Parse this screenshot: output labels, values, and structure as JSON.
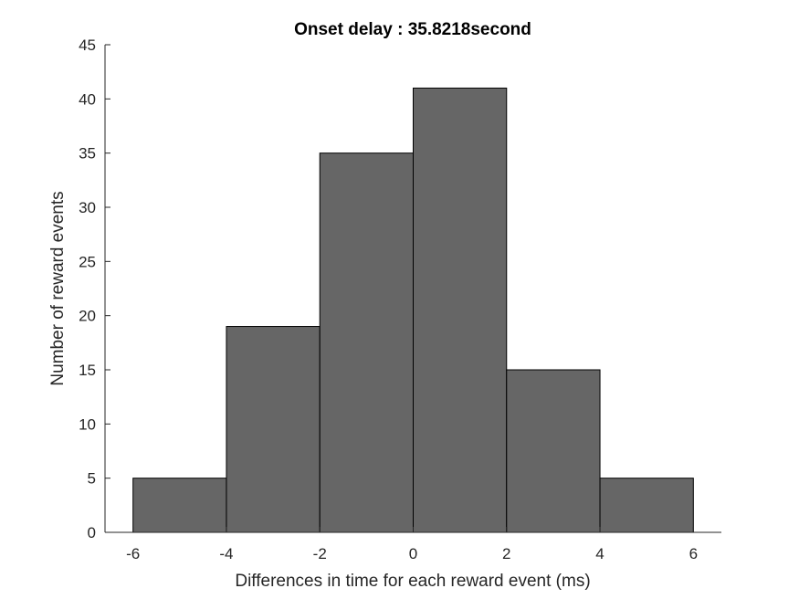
{
  "chart_data": {
    "type": "bar",
    "title": "Onset delay : 35.8218second",
    "xlabel": "Differences in time for each reward event (ms)",
    "ylabel": "Number of reward events",
    "bins": [
      {
        "from": -6,
        "to": -4,
        "count": 5
      },
      {
        "from": -4,
        "to": -2,
        "count": 19
      },
      {
        "from": -2,
        "to": 0,
        "count": 35
      },
      {
        "from": 0,
        "to": 2,
        "count": 41
      },
      {
        "from": 2,
        "to": 4,
        "count": 15
      },
      {
        "from": 4,
        "to": 6,
        "count": 5
      }
    ],
    "xlim": [
      -6.6,
      6.6
    ],
    "ylim": [
      0,
      45
    ],
    "xticks": [
      -6,
      -4,
      -2,
      0,
      2,
      4,
      6
    ],
    "yticks": [
      0,
      5,
      10,
      15,
      20,
      25,
      30,
      35,
      40,
      45
    ],
    "grid": false,
    "legend": "none",
    "bar_color": "#666666",
    "edge_color": "#000000",
    "axis_color": "#262626"
  }
}
